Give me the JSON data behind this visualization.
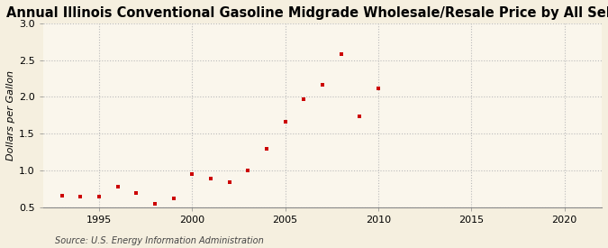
{
  "title": "Annual Illinois Conventional Gasoline Midgrade Wholesale/Resale Price by All Sellers",
  "ylabel": "Dollars per Gallon",
  "source": "Source: U.S. Energy Information Administration",
  "bg_color": "#f5efdf",
  "plot_bg_color": "#faf6ec",
  "marker_color": "#cc0000",
  "years": [
    1993,
    1994,
    1995,
    1996,
    1997,
    1998,
    1999,
    2000,
    2001,
    2002,
    2003,
    2004,
    2005,
    2006,
    2007,
    2008,
    2009,
    2010
  ],
  "values": [
    0.655,
    0.645,
    0.648,
    0.775,
    0.695,
    0.548,
    0.618,
    0.955,
    0.895,
    0.835,
    0.998,
    1.29,
    1.66,
    1.965,
    2.17,
    2.58,
    1.735,
    2.115
  ],
  "xlim": [
    1992,
    2022
  ],
  "ylim": [
    0.5,
    3.0
  ],
  "xticks": [
    1995,
    2000,
    2005,
    2010,
    2015,
    2020
  ],
  "yticks": [
    0.5,
    1.0,
    1.5,
    2.0,
    2.5,
    3.0
  ],
  "grid_color": "#bbbbbb",
  "title_fontsize": 10.5,
  "label_fontsize": 8,
  "source_fontsize": 7
}
